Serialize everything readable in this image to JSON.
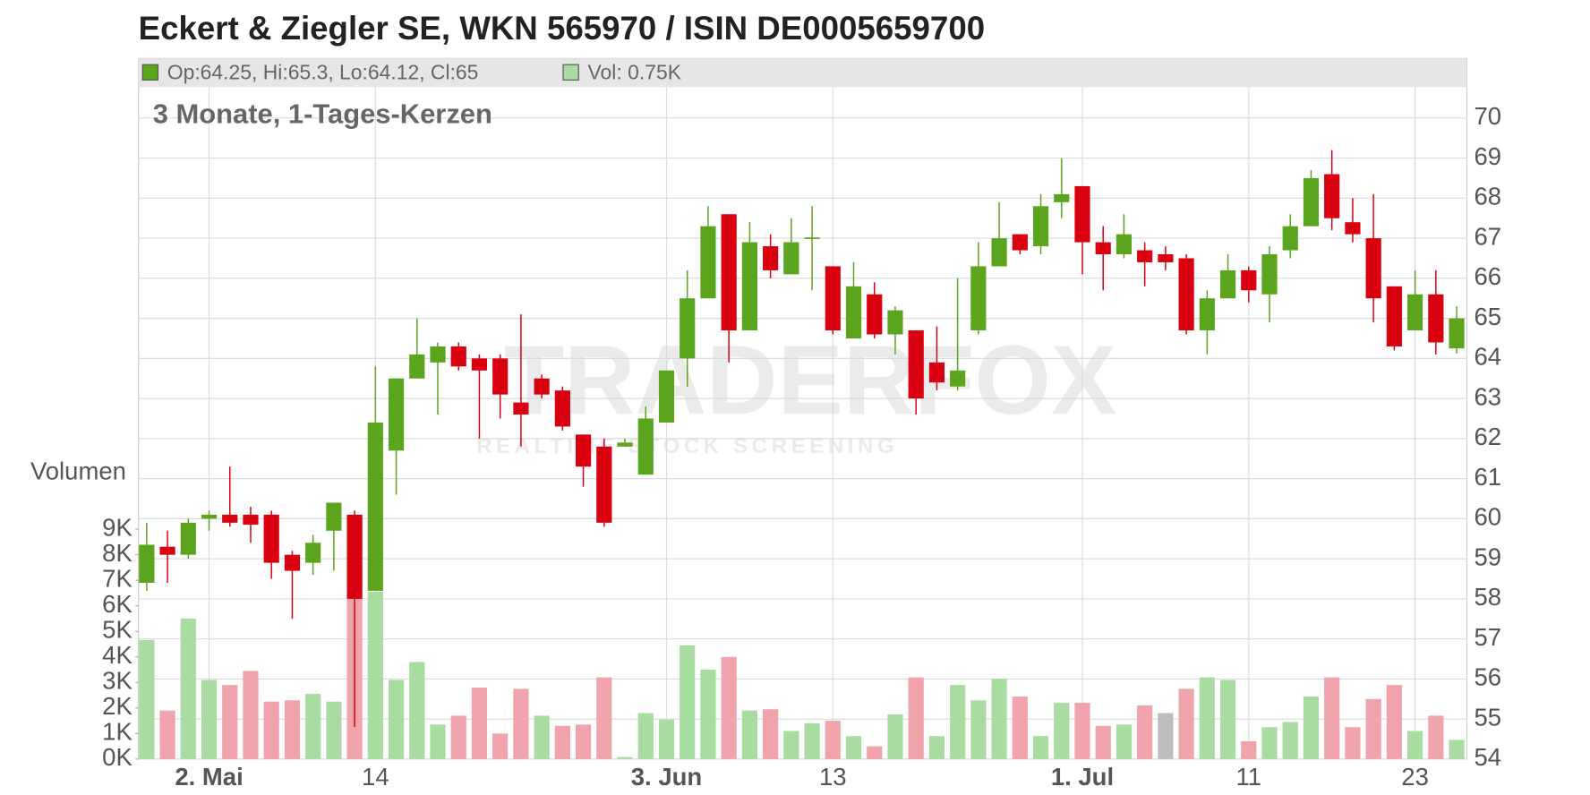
{
  "chart_data": {
    "type": "candlestick",
    "title": "Eckert & Ziegler SE, WKN 565970 / ISIN DE0005659700",
    "subtitle": "3 Monate, 1-Tages-Kerzen",
    "ohlc_label": "Op:64.25, Hi:65.3, Lo:64.12, Cl:65",
    "volume_label": "Vol: 0.75K",
    "volume_axis_label": "Volumen",
    "watermark": "TRADERFOX",
    "watermark_sub": "REALTIME STOCK SCREENING",
    "categories": [
      null,
      null,
      null,
      "2. Mai",
      null,
      null,
      null,
      null,
      null,
      null,
      null,
      "14",
      null,
      null,
      null,
      null,
      null,
      null,
      null,
      null,
      null,
      null,
      null,
      null,
      null,
      "3. Jun",
      null,
      null,
      null,
      null,
      null,
      null,
      null,
      "13",
      null,
      null,
      null,
      null,
      null,
      null,
      null,
      null,
      null,
      null,
      null,
      "1. Jul",
      null,
      null,
      null,
      null,
      null,
      null,
      null,
      "11",
      null,
      null,
      null,
      null,
      null,
      null,
      null,
      "23",
      null,
      null
    ],
    "open": [
      58.4,
      59.3,
      59.1,
      60.0,
      60.1,
      60.1,
      60.1,
      59.1,
      58.9,
      59.7,
      60.1,
      58.2,
      61.7,
      63.5,
      63.9,
      64.3,
      64.0,
      64.0,
      62.9,
      63.5,
      63.2,
      62.1,
      61.8,
      61.8,
      61.1,
      62.4,
      64.0,
      65.5,
      67.6,
      64.7,
      66.8,
      66.1,
      67.0,
      66.3,
      64.5,
      65.6,
      64.6,
      64.7,
      63.9,
      63.3,
      64.7,
      66.3,
      67.1,
      66.8,
      67.9,
      68.3,
      66.9,
      66.6,
      66.7,
      66.6,
      66.5,
      64.7,
      65.5,
      66.2,
      65.6,
      66.7,
      67.3,
      68.6,
      67.4,
      67.0,
      65.8,
      64.7,
      65.6,
      64.25
    ],
    "high": [
      59.9,
      59.7,
      60.0,
      60.2,
      61.3,
      60.3,
      60.2,
      59.2,
      59.6,
      60.4,
      60.2,
      63.8,
      63.5,
      65.0,
      64.4,
      64.4,
      64.1,
      64.1,
      65.1,
      63.6,
      63.3,
      62.1,
      62.0,
      62.0,
      62.8,
      63.7,
      66.2,
      67.8,
      67.6,
      67.4,
      67.1,
      67.5,
      67.8,
      66.3,
      66.4,
      65.9,
      65.3,
      64.7,
      64.8,
      66.0,
      66.9,
      67.9,
      67.1,
      68.1,
      69.0,
      68.3,
      67.3,
      67.6,
      66.9,
      66.8,
      66.6,
      65.7,
      66.6,
      66.3,
      66.8,
      67.6,
      68.7,
      69.2,
      68.0,
      68.1,
      65.8,
      66.2,
      66.2,
      65.3
    ],
    "low": [
      58.2,
      58.4,
      59.0,
      59.7,
      59.8,
      59.4,
      58.5,
      57.5,
      58.6,
      58.7,
      54.8,
      58.2,
      60.6,
      63.5,
      62.6,
      63.7,
      62.0,
      62.5,
      61.8,
      63.0,
      62.2,
      60.8,
      59.8,
      61.8,
      61.1,
      62.4,
      63.3,
      65.5,
      63.9,
      64.7,
      66.0,
      66.1,
      65.7,
      64.6,
      64.5,
      64.5,
      64.1,
      62.6,
      63.2,
      63.2,
      64.6,
      66.3,
      66.6,
      66.6,
      67.5,
      66.1,
      65.7,
      66.5,
      65.8,
      66.2,
      64.6,
      64.1,
      65.5,
      65.4,
      64.9,
      66.5,
      67.3,
      67.2,
      66.9,
      64.9,
      64.2,
      64.7,
      64.1,
      64.12
    ],
    "close": [
      59.35,
      59.1,
      59.9,
      60.1,
      59.9,
      59.85,
      58.9,
      58.7,
      59.4,
      60.4,
      58.0,
      62.4,
      63.5,
      64.1,
      64.3,
      63.8,
      63.7,
      63.1,
      62.6,
      63.1,
      62.3,
      61.3,
      59.9,
      61.9,
      62.5,
      63.7,
      65.5,
      67.3,
      64.7,
      66.9,
      66.2,
      66.9,
      67.02,
      64.7,
      65.8,
      64.6,
      65.2,
      63.0,
      63.4,
      63.7,
      66.3,
      67.0,
      66.7,
      67.8,
      68.1,
      66.9,
      66.6,
      67.1,
      66.4,
      66.4,
      64.7,
      65.5,
      66.2,
      65.7,
      66.6,
      67.3,
      68.5,
      67.5,
      67.1,
      65.5,
      64.3,
      65.6,
      64.4,
      65
    ],
    "volume": [
      4.66,
      1.9,
      5.5,
      3.1,
      2.9,
      3.45,
      2.25,
      2.3,
      2.55,
      2.25,
      6.3,
      6.55,
      3.1,
      3.8,
      1.35,
      1.7,
      2.8,
      1.0,
      2.75,
      1.7,
      1.3,
      1.35,
      3.2,
      0.08,
      1.8,
      1.55,
      4.45,
      3.5,
      4.0,
      1.9,
      1.95,
      1.1,
      1.4,
      1.5,
      0.9,
      0.5,
      1.75,
      3.2,
      0.9,
      2.9,
      2.3,
      3.15,
      2.45,
      0.9,
      2.2,
      2.2,
      1.3,
      1.35,
      2.1,
      1.8,
      2.75,
      3.2,
      3.1,
      0.7,
      1.25,
      1.45,
      2.45,
      3.2,
      1.25,
      2.35,
      2.9,
      1.1,
      1.7,
      0.75
    ],
    "up_color": "#5aa41e",
    "down_color": "#d9000f",
    "volume_up_color": "#a8dca0",
    "volume_down_color": "#f0a3ab",
    "volume_flat_color": "#bdbdbd",
    "ylim": [
      54,
      70.77
    ],
    "yticks": [
      54,
      55,
      56,
      57,
      58,
      59,
      60,
      61,
      62,
      63,
      64,
      65,
      66,
      67,
      68,
      69,
      70
    ],
    "y2lim": [
      0,
      26.3
    ],
    "y2ticks": [
      {
        "value": 0,
        "label": "0K"
      },
      {
        "value": 1,
        "label": "1K"
      },
      {
        "value": 2,
        "label": "2K"
      },
      {
        "value": 3,
        "label": "3K"
      },
      {
        "value": 4,
        "label": "4K"
      },
      {
        "value": 5,
        "label": "5K"
      },
      {
        "value": 6,
        "label": "6K"
      },
      {
        "value": 7,
        "label": "7K"
      },
      {
        "value": 8,
        "label": "8K"
      },
      {
        "value": 9,
        "label": "9K"
      }
    ],
    "grid": true
  }
}
